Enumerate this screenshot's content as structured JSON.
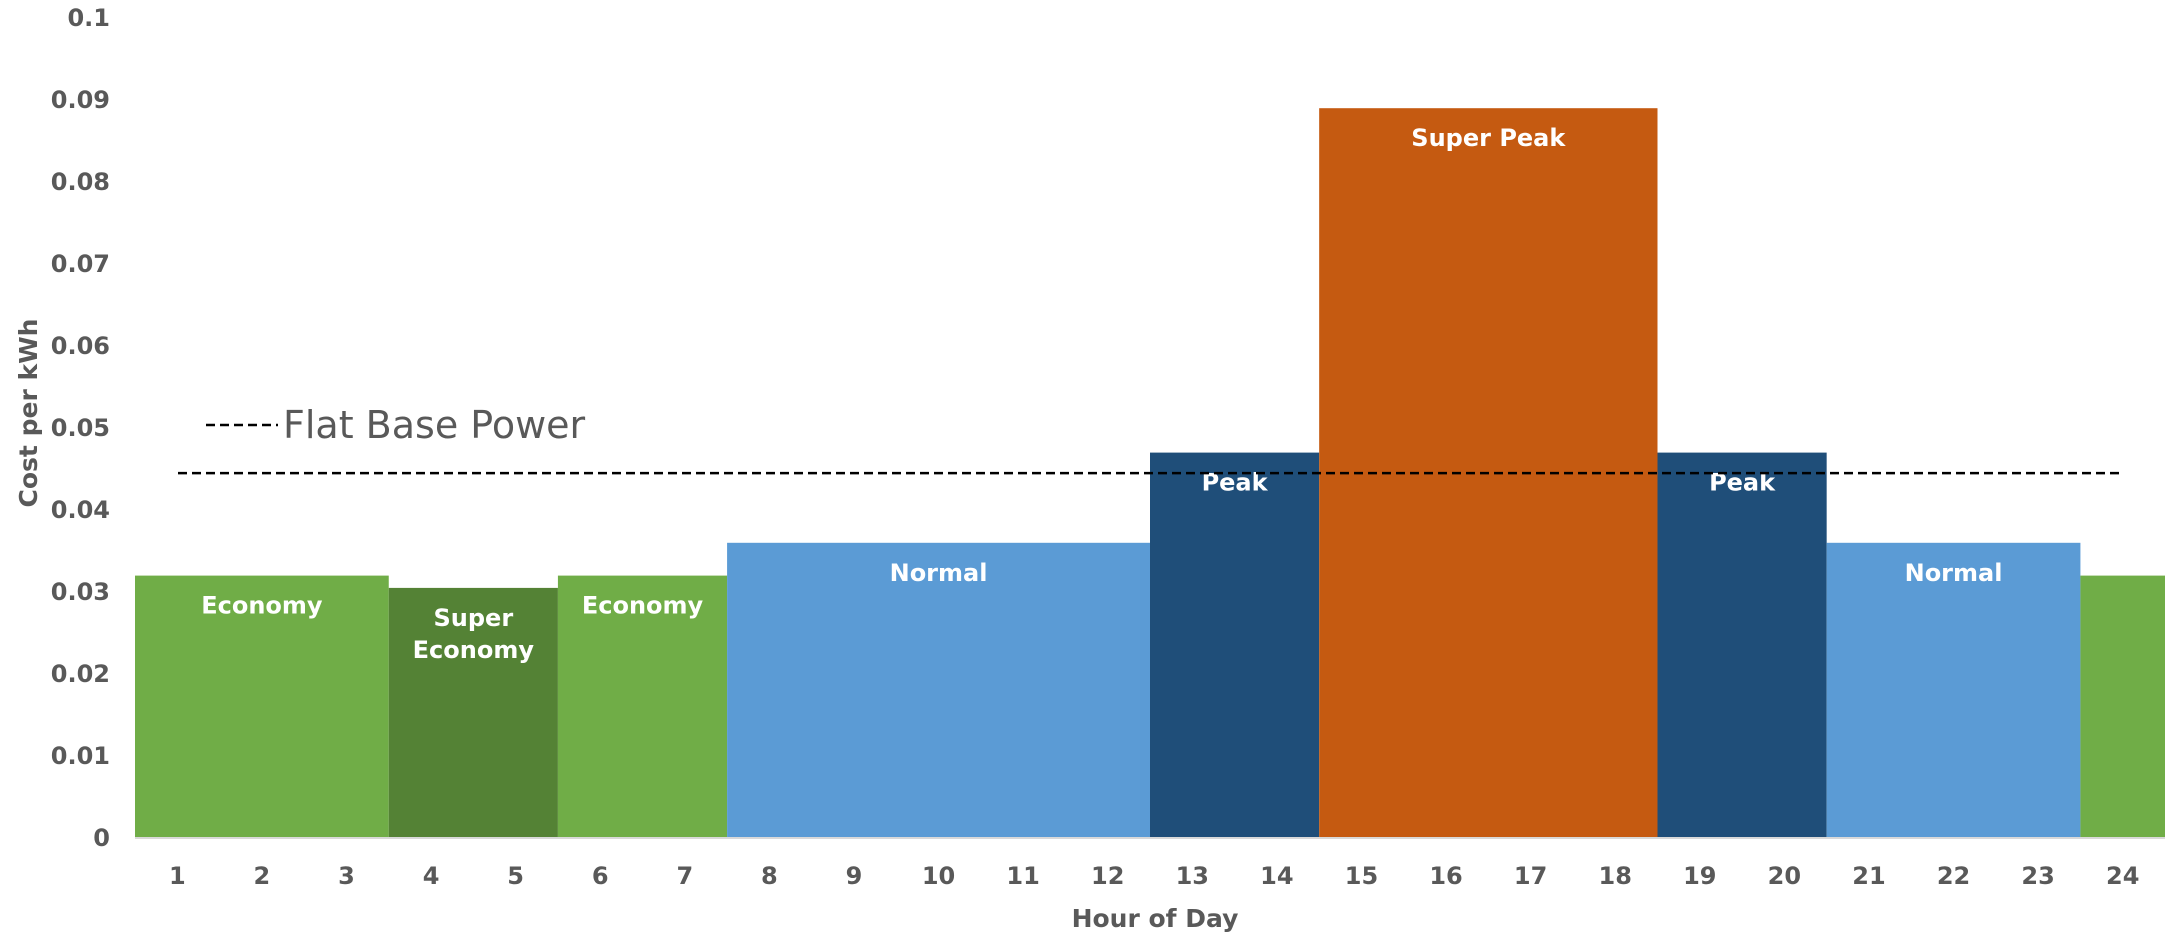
{
  "chart_data": {
    "type": "bar",
    "xlabel": "Hour of Day",
    "ylabel": "Cost per kWh",
    "ylim": [
      0,
      0.1
    ],
    "y_ticks": [
      "0",
      "0.01",
      "0.02",
      "0.03",
      "0.04",
      "0.05",
      "0.06",
      "0.07",
      "0.08",
      "0.09",
      "0.1"
    ],
    "categories": [
      "1",
      "2",
      "3",
      "4",
      "5",
      "6",
      "7",
      "8",
      "9",
      "10",
      "11",
      "12",
      "13",
      "14",
      "15",
      "16",
      "17",
      "18",
      "19",
      "20",
      "21",
      "22",
      "23",
      "24"
    ],
    "values": [
      0.032,
      0.032,
      0.032,
      0.0305,
      0.0305,
      0.032,
      0.032,
      0.036,
      0.036,
      0.036,
      0.036,
      0.036,
      0.047,
      0.047,
      0.089,
      0.089,
      0.089,
      0.089,
      0.047,
      0.047,
      0.036,
      0.036,
      0.036,
      0.032
    ],
    "bands": [
      {
        "label": "Economy",
        "start": 1,
        "end": 3,
        "value": 0.032,
        "color": "#70AD47"
      },
      {
        "label": "Super Economy",
        "start": 4,
        "end": 5,
        "value": 0.0305,
        "color": "#548235"
      },
      {
        "label": "Economy",
        "start": 6,
        "end": 7,
        "value": 0.032,
        "color": "#70AD47"
      },
      {
        "label": "Normal",
        "start": 8,
        "end": 12,
        "value": 0.036,
        "color": "#5B9BD5"
      },
      {
        "label": "Peak",
        "start": 13,
        "end": 14,
        "value": 0.047,
        "color": "#1F4E79"
      },
      {
        "label": "Super Peak",
        "start": 15,
        "end": 18,
        "value": 0.089,
        "color": "#C55A11"
      },
      {
        "label": "Peak",
        "start": 19,
        "end": 20,
        "value": 0.047,
        "color": "#1F4E79"
      },
      {
        "label": "Normal",
        "start": 21,
        "end": 23,
        "value": 0.036,
        "color": "#5B9BD5"
      },
      {
        "label": "",
        "start": 24,
        "end": 24,
        "value": 0.032,
        "color": "#70AD47"
      }
    ],
    "flat_line": {
      "name": "Flat Base Power",
      "value": 0.0445,
      "color": "#000000",
      "style": "dashed"
    },
    "grid": false,
    "legend_placement": "top-left"
  }
}
